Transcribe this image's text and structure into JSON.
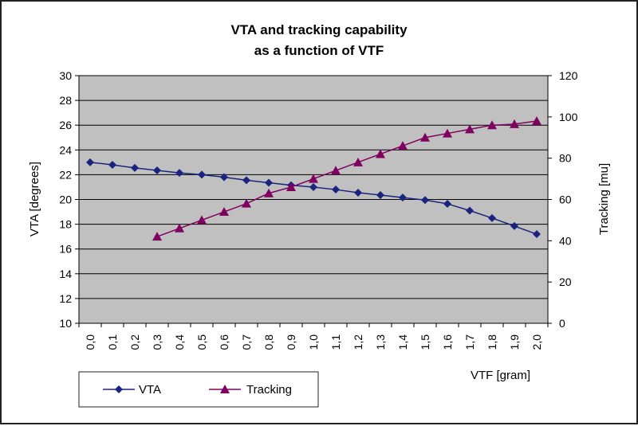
{
  "chart_data": {
    "type": "line",
    "title_line1": "VTA and tracking capability",
    "title_line2": "as a function of VTF",
    "xlabel": "VTF [gram]",
    "ylabel_left": "VTA [degrees]",
    "ylabel_right": "Tracking [mu]",
    "categories": [
      "0,0",
      "0,1",
      "0,2",
      "0,3",
      "0,4",
      "0,5",
      "0,6",
      "0,7",
      "0,8",
      "0,9",
      "1,0",
      "1,1",
      "1,2",
      "1,3",
      "1,4",
      "1,5",
      "1,6",
      "1,7",
      "1,8",
      "1,9",
      "2,0"
    ],
    "ylim_left": [
      10,
      30
    ],
    "yticks_left": [
      "10",
      "12",
      "14",
      "16",
      "18",
      "20",
      "22",
      "24",
      "26",
      "28",
      "30"
    ],
    "ylim_right": [
      0,
      120
    ],
    "yticks_right": [
      "0",
      "20",
      "40",
      "60",
      "80",
      "100",
      "120"
    ],
    "grid": true,
    "legend_position": "bottom-left",
    "series": [
      {
        "name": "VTA",
        "axis": "left",
        "color": "#1a237e",
        "marker": "diamond",
        "values": [
          23.0,
          22.8,
          22.55,
          22.35,
          22.15,
          22.0,
          21.8,
          21.55,
          21.35,
          21.15,
          21.0,
          20.8,
          20.55,
          20.35,
          20.15,
          19.95,
          19.65,
          19.1,
          18.5,
          17.85,
          17.2
        ]
      },
      {
        "name": "Tracking",
        "axis": "right",
        "color": "#800060",
        "marker": "triangle",
        "values": [
          null,
          null,
          null,
          42,
          46,
          50,
          54,
          58,
          63,
          66,
          70,
          74,
          78,
          82,
          86,
          90,
          92,
          94,
          96,
          96.5,
          98
        ]
      }
    ]
  }
}
